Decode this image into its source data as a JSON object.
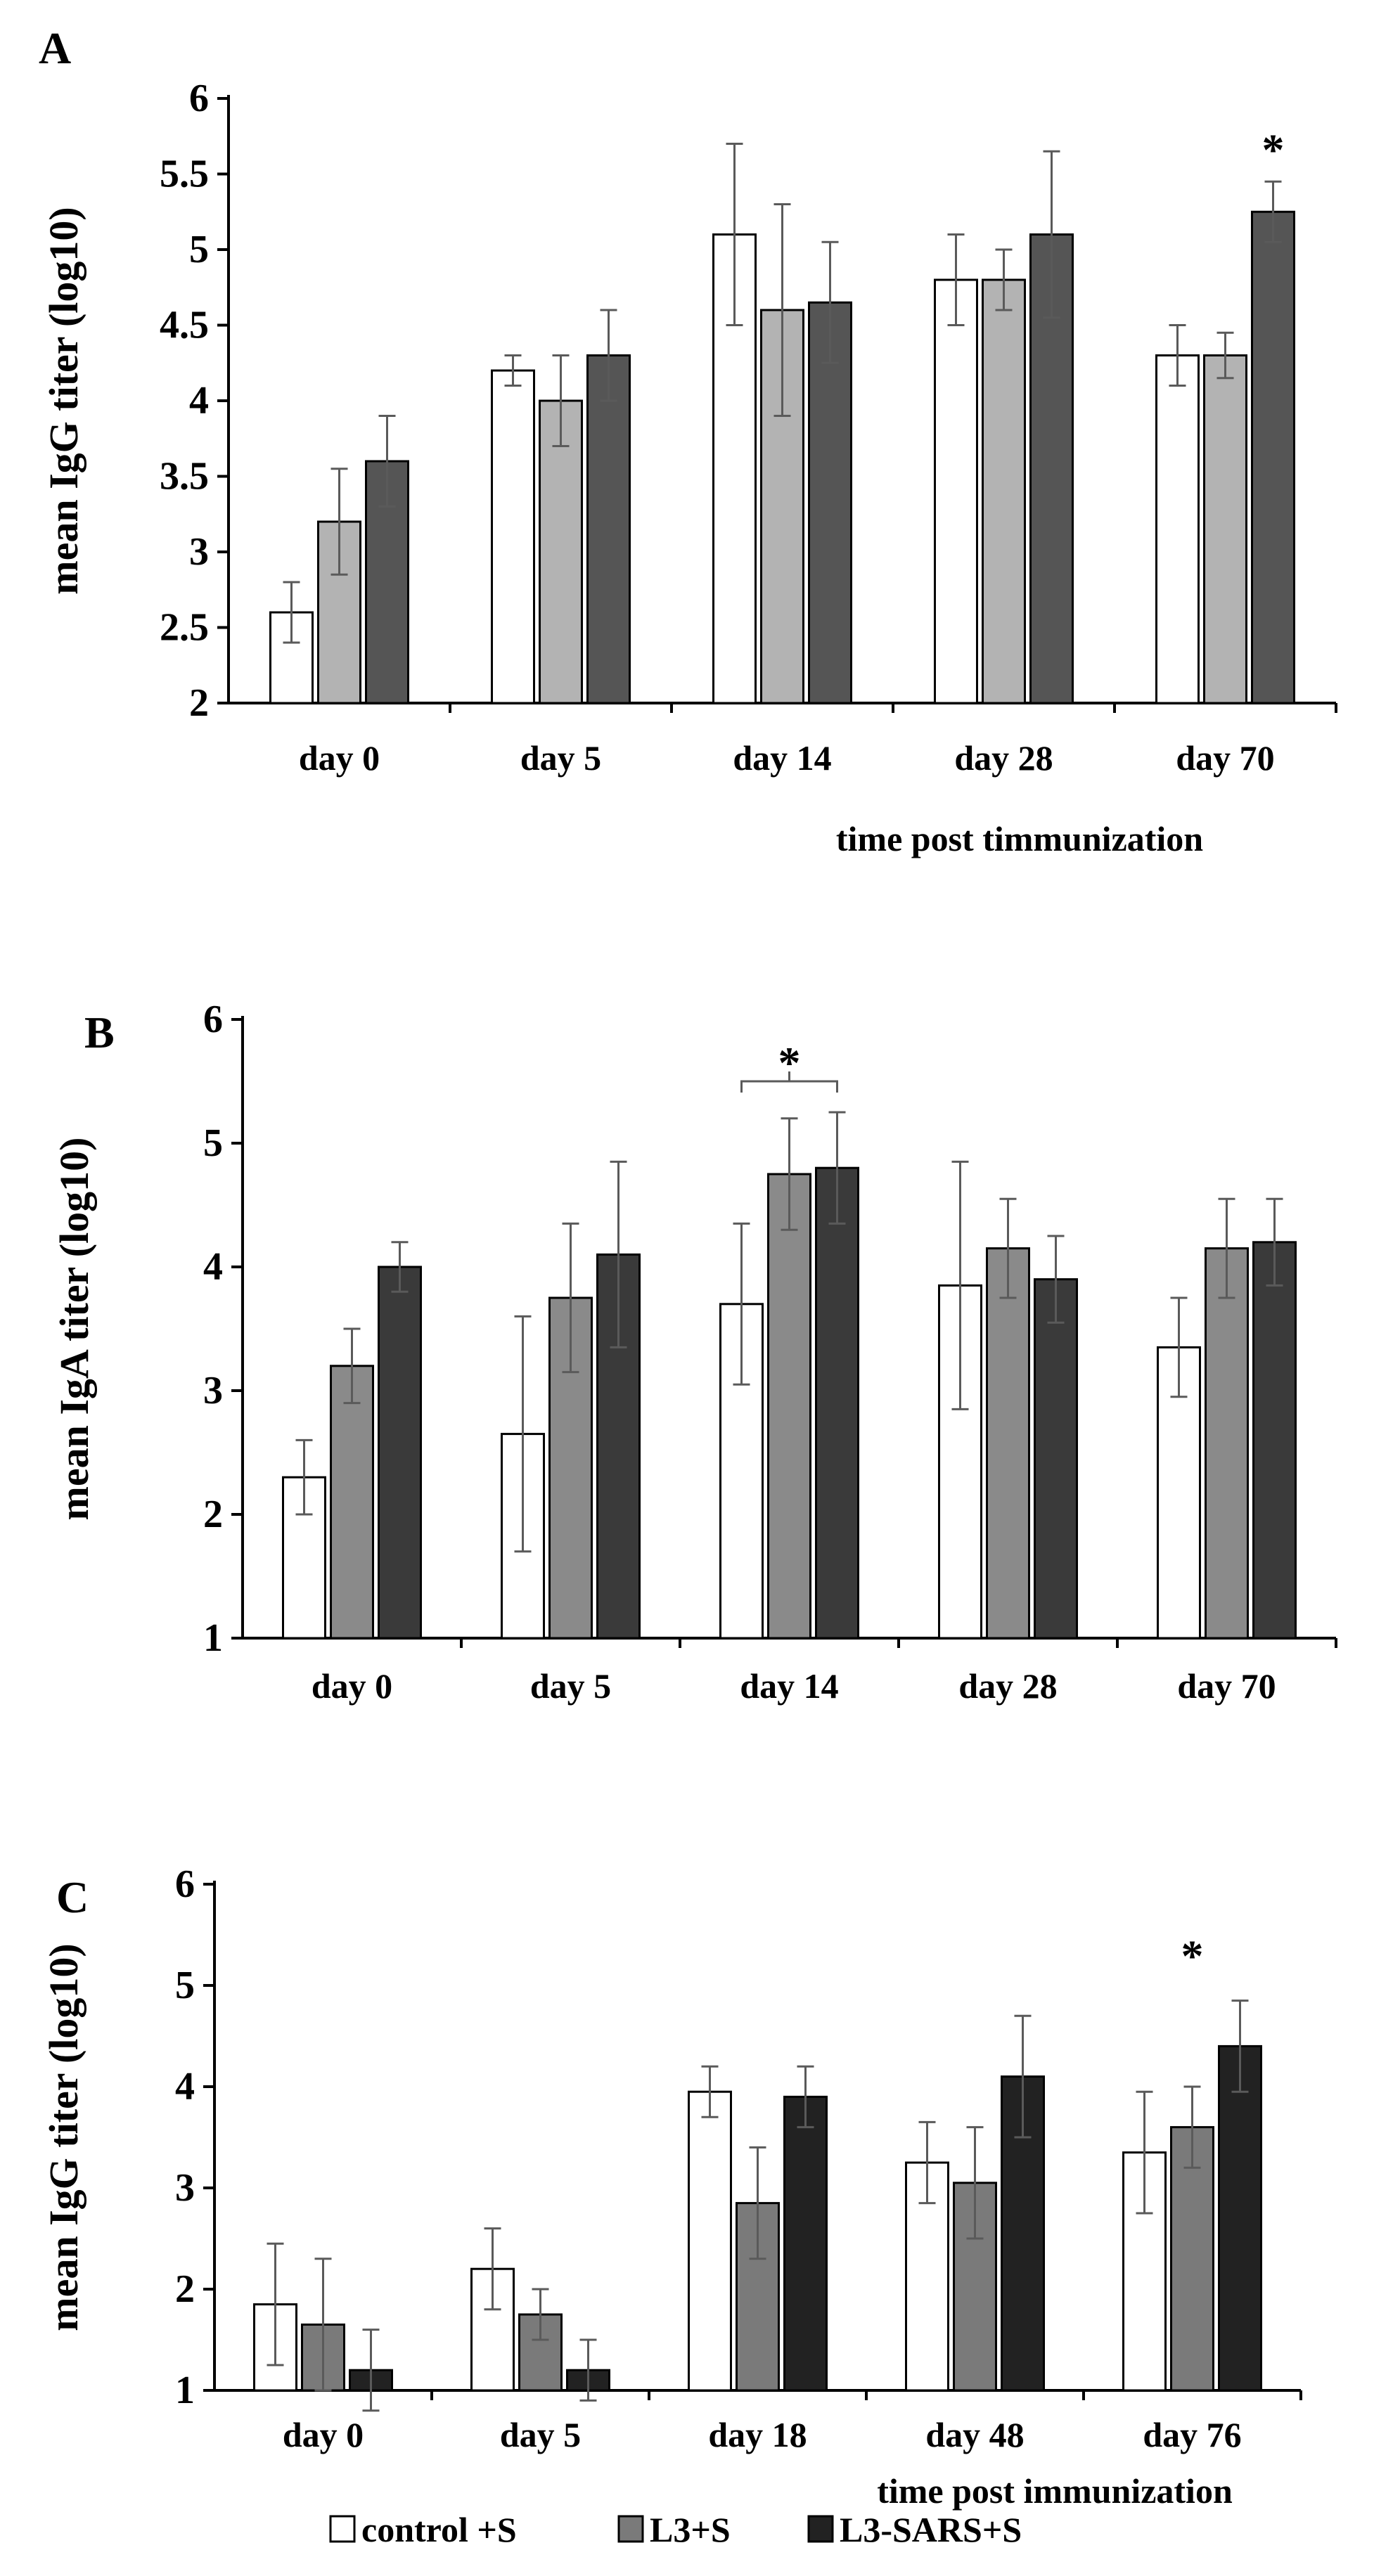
{
  "colors": {
    "axis": "#000000",
    "error_bar": "#5a5a5a"
  },
  "chart_data": [
    {
      "panel": "A",
      "type": "bar",
      "ylabel": "mean IgG titer (log10)",
      "xlabel": "time post timmunization",
      "ylim": [
        2,
        6
      ],
      "yticks": [
        "2",
        "2.5",
        "3",
        "3.5",
        "4",
        "4.5",
        "5",
        "5.5",
        "6"
      ],
      "categories": [
        "day 0",
        "day 5",
        "day 14",
        "day 28",
        "day 70"
      ],
      "series": [
        {
          "name": "control +S",
          "color": "#ffffff",
          "values": [
            2.6,
            4.2,
            5.1,
            4.8,
            4.3
          ],
          "errors": [
            0.2,
            0.1,
            0.6,
            0.3,
            0.2
          ]
        },
        {
          "name": "L3+S",
          "color": "#b3b3b3",
          "values": [
            3.2,
            4.0,
            4.6,
            4.8,
            4.3
          ],
          "errors": [
            0.35,
            0.3,
            0.7,
            0.2,
            0.15
          ]
        },
        {
          "name": "L3-SARS+S",
          "color": "#555555",
          "values": [
            3.6,
            4.3,
            4.65,
            5.1,
            5.25
          ],
          "errors": [
            0.3,
            0.3,
            0.4,
            0.55,
            0.2
          ]
        }
      ],
      "annotations": [
        {
          "text": "*",
          "category": "day 70",
          "series": 2,
          "value": 5.7
        }
      ]
    },
    {
      "panel": "B",
      "type": "bar",
      "ylabel": "mean IgA titer (log10)",
      "xlabel": "",
      "ylim": [
        1,
        6
      ],
      "yticks": [
        "1",
        "2",
        "3",
        "4",
        "5",
        "6"
      ],
      "categories": [
        "day 0",
        "day 5",
        "day 14",
        "day 28",
        "day 70"
      ],
      "series": [
        {
          "name": "control +S",
          "color": "#ffffff",
          "values": [
            2.3,
            2.65,
            3.7,
            3.85,
            3.35
          ],
          "errors": [
            0.3,
            0.95,
            0.65,
            1.0,
            0.4
          ]
        },
        {
          "name": "L3+S",
          "color": "#8a8a8a",
          "values": [
            3.2,
            3.75,
            4.75,
            4.15,
            4.15
          ],
          "errors": [
            0.3,
            0.6,
            0.45,
            0.4,
            0.4
          ]
        },
        {
          "name": "L3-SARS+S",
          "color": "#3a3a3a",
          "values": [
            4.0,
            4.1,
            4.8,
            3.9,
            4.2
          ],
          "errors": [
            0.2,
            0.75,
            0.45,
            0.35,
            0.35
          ]
        }
      ],
      "annotations": [
        {
          "text": "*",
          "category": "day 14",
          "series": 1,
          "value": 5.7,
          "bracket_from_series": 0,
          "bracket_to_series": 2,
          "bracket_value": 5.5
        }
      ]
    },
    {
      "panel": "C",
      "type": "bar",
      "ylabel": "mean IgG titer (log10)",
      "xlabel": "time post immunization",
      "ylim": [
        1,
        6
      ],
      "yticks": [
        "1",
        "2",
        "3",
        "4",
        "5",
        "6"
      ],
      "categories": [
        "day 0",
        "day 5",
        "day 18",
        "day 48",
        "day 76"
      ],
      "series": [
        {
          "name": "control +S",
          "color": "#ffffff",
          "values": [
            1.85,
            2.2,
            3.95,
            3.25,
            3.35
          ],
          "errors": [
            0.6,
            0.4,
            0.25,
            0.4,
            0.6
          ]
        },
        {
          "name": "L3+S",
          "color": "#7a7a7a",
          "values": [
            1.65,
            1.75,
            2.85,
            3.05,
            3.6
          ],
          "errors": [
            0.65,
            0.25,
            0.55,
            0.55,
            0.4
          ]
        },
        {
          "name": "L3-SARS+S",
          "color": "#222222",
          "values": [
            1.2,
            1.2,
            3.9,
            4.1,
            4.4
          ],
          "errors": [
            0.4,
            0.3,
            0.3,
            0.6,
            0.45
          ]
        }
      ],
      "annotations": [
        {
          "text": "*",
          "category": "day 76",
          "series": 1,
          "value": 5.35
        }
      ]
    }
  ],
  "legend": [
    {
      "label": "control +S",
      "color": "#ffffff"
    },
    {
      "label": "L3+S",
      "color": "#7a7a7a"
    },
    {
      "label": "L3-SARS+S",
      "color": "#222222"
    }
  ]
}
